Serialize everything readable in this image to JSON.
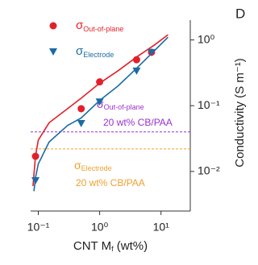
{
  "chart_data": {
    "type": "scatter",
    "panel_label": "D",
    "x_label": [
      "CNT M",
      "f",
      " (wt%)"
    ],
    "y_label": "Conductivity (S m⁻¹)",
    "x_log": true,
    "y_log": true,
    "y_axis_side": "right",
    "xlim": [
      0.075,
      30
    ],
    "ylim": [
      0.0025,
      2
    ],
    "xticks": [
      {
        "value": 0.1,
        "label": "10⁻¹"
      },
      {
        "value": 1,
        "label": "10⁰"
      },
      {
        "value": 10,
        "label": "10¹"
      }
    ],
    "yticks": [
      {
        "value": 0.01,
        "label": "10⁻²"
      },
      {
        "value": 0.1,
        "label": "10⁻¹"
      },
      {
        "value": 1,
        "label": "10⁰"
      }
    ],
    "series": [
      {
        "name": "σ",
        "name_sub": "Out-of-plane",
        "marker": "circle",
        "color": "#e3202a",
        "x": [
          0.09,
          0.5,
          1,
          4,
          7
        ],
        "values": [
          0.017,
          0.09,
          0.23,
          0.5,
          0.65
        ]
      },
      {
        "name": "σ",
        "name_sub": "Electrode",
        "marker": "triangle",
        "color": "#1b6ba5",
        "x": [
          0.09,
          0.5,
          1,
          4,
          7
        ],
        "values": [
          0.0073,
          0.054,
          0.115,
          0.34,
          0.65
        ]
      },
      {
        "marker": "line",
        "color": "#e3202a",
        "x": [
          0.082,
          0.09,
          0.1,
          0.15,
          0.3,
          0.5,
          1,
          2,
          4,
          8,
          13
        ],
        "values": [
          0.006,
          0.017,
          0.03,
          0.055,
          0.09,
          0.13,
          0.22,
          0.34,
          0.55,
          0.85,
          1.2
        ]
      },
      {
        "marker": "line",
        "color": "#1b6ba5",
        "x": [
          0.085,
          0.09,
          0.1,
          0.15,
          0.3,
          0.5,
          1,
          2,
          4,
          8,
          13
        ],
        "values": [
          0.005,
          0.008,
          0.013,
          0.028,
          0.05,
          0.065,
          0.12,
          0.2,
          0.37,
          0.7,
          1.1
        ]
      }
    ],
    "reference_lines": [
      {
        "value": 0.04,
        "color": "#9b30d0",
        "text": "σ",
        "text_sub": "Out-of-plane",
        "text2": "20 wt% CB/PAA"
      },
      {
        "value": 0.022,
        "color": "#f0a030",
        "text": "σ",
        "text_sub": "Electrode",
        "text2": "20 wt% CB/PAA"
      }
    ]
  }
}
